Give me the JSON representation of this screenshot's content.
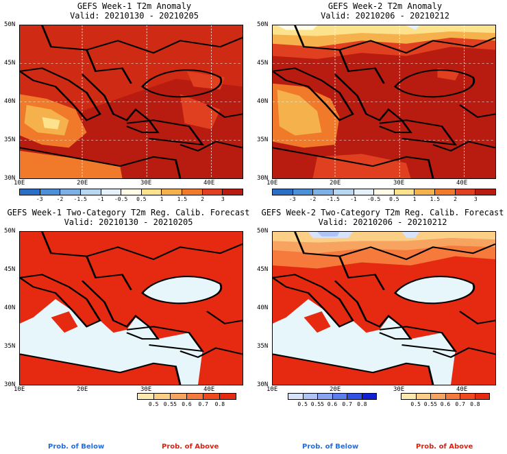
{
  "panels": [
    {
      "title": "GEFS Week-1 T2m Anomaly",
      "valid": "Valid: 20210130 - 20210205"
    },
    {
      "title": "GEFS Week-2 T2m Anomaly",
      "valid": "Valid: 20210206 - 20210212"
    },
    {
      "title": "GEFS Week-1 Two-Category T2m Reg. Calib. Forecast",
      "valid": "Valid: 20210130 - 20210205"
    },
    {
      "title": "GEFS Week-2 Two-Category T2m Reg. Calib. Forecast",
      "valid": "Valid: 20210206 - 20210212"
    }
  ],
  "lat_labels": [
    "50N",
    "45N",
    "40N",
    "35N",
    "30N"
  ],
  "lon_labels": [
    "10E",
    "20E",
    "30E",
    "40E"
  ],
  "anomaly_colorbar": {
    "labels": [
      "-3",
      "-2",
      "-1.5",
      "-1",
      "-0.5",
      "0.5",
      "1",
      "1.5",
      "2",
      "3"
    ],
    "colors": [
      "#2a6fc6",
      "#4a8fd8",
      "#7db1e6",
      "#b7d6f2",
      "#e4f1fb",
      "#fffbe6",
      "#fce28c",
      "#f5b14b",
      "#f0792a",
      "#e0401f",
      "#b81b10"
    ]
  },
  "prob_above_colorbar": {
    "labels": [
      "0.5",
      "0.55",
      "0.6",
      "0.7",
      "0.8"
    ],
    "colors": [
      "#fde9b0",
      "#fbcf86",
      "#f8a461",
      "#f57a3c",
      "#f04a1d",
      "#e62a12"
    ]
  },
  "prob_below_colorbar": {
    "labels": [
      "0.5",
      "0.55",
      "0.6",
      "0.7",
      "0.8"
    ],
    "colors": [
      "#d7e2fb",
      "#aec4f7",
      "#8aa6f3",
      "#5b7fee",
      "#2f52e4",
      "#1021d4"
    ]
  },
  "legend": {
    "below": "Prob. of Below",
    "above": "Prob. of Above"
  },
  "colors": {
    "below_text": "#1e6ee6",
    "above_text": "#e0200e",
    "sea": "#e6f6fa"
  }
}
